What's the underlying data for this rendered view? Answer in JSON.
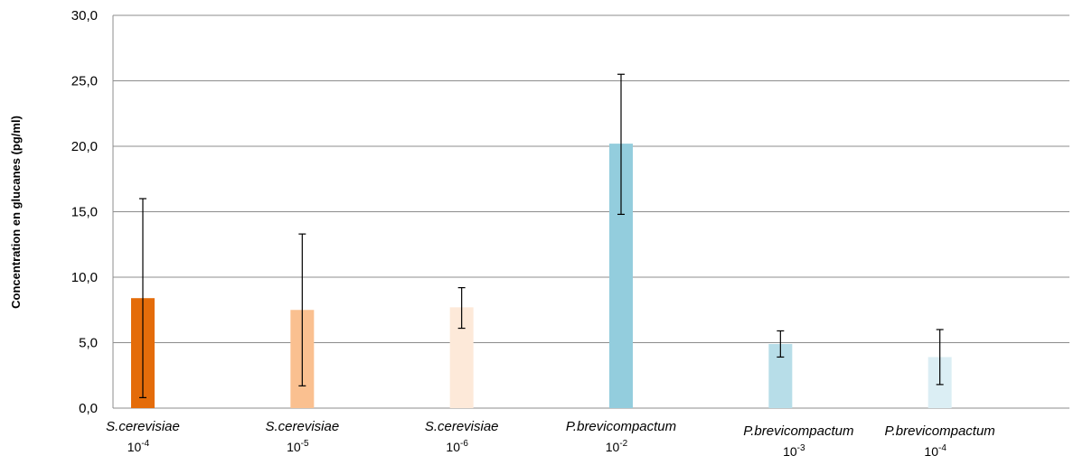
{
  "chart_data": {
    "type": "bar",
    "ylabel": "Concentration en glucanes (pg/ml)",
    "ylim": [
      0,
      30
    ],
    "y_ticks": [
      "0,0",
      "5,0",
      "10,0",
      "15,0",
      "20,0",
      "25,0",
      "30,0"
    ],
    "y_tick_values": [
      0,
      5,
      10,
      15,
      20,
      25,
      30
    ],
    "grid": true,
    "categories": [
      {
        "name": "S.cerevisiae",
        "dilution_base": "10",
        "dilution_exp": "-4"
      },
      {
        "name": "S.cerevisiae",
        "dilution_base": "10",
        "dilution_exp": "-5"
      },
      {
        "name": "S.cerevisiae",
        "dilution_base": "10",
        "dilution_exp": "-6"
      },
      {
        "name": "P.brevicompactum",
        "dilution_base": "10",
        "dilution_exp": "-2"
      },
      {
        "name": "P.brevicompactum",
        "dilution_base": "10",
        "dilution_exp": "-3"
      },
      {
        "name": "P.brevicompactum",
        "dilution_base": "10",
        "dilution_exp": "-4"
      }
    ],
    "values": [
      8.4,
      7.5,
      7.7,
      20.2,
      4.9,
      3.9
    ],
    "error_low": [
      0.8,
      1.7,
      6.1,
      14.8,
      3.9,
      1.8
    ],
    "error_high": [
      16.0,
      13.3,
      9.2,
      25.5,
      5.9,
      6.0
    ],
    "colors": [
      "#e46c0a",
      "#fac090",
      "#fde9d9",
      "#93cddd",
      "#b7dde8",
      "#dbeef4"
    ]
  }
}
